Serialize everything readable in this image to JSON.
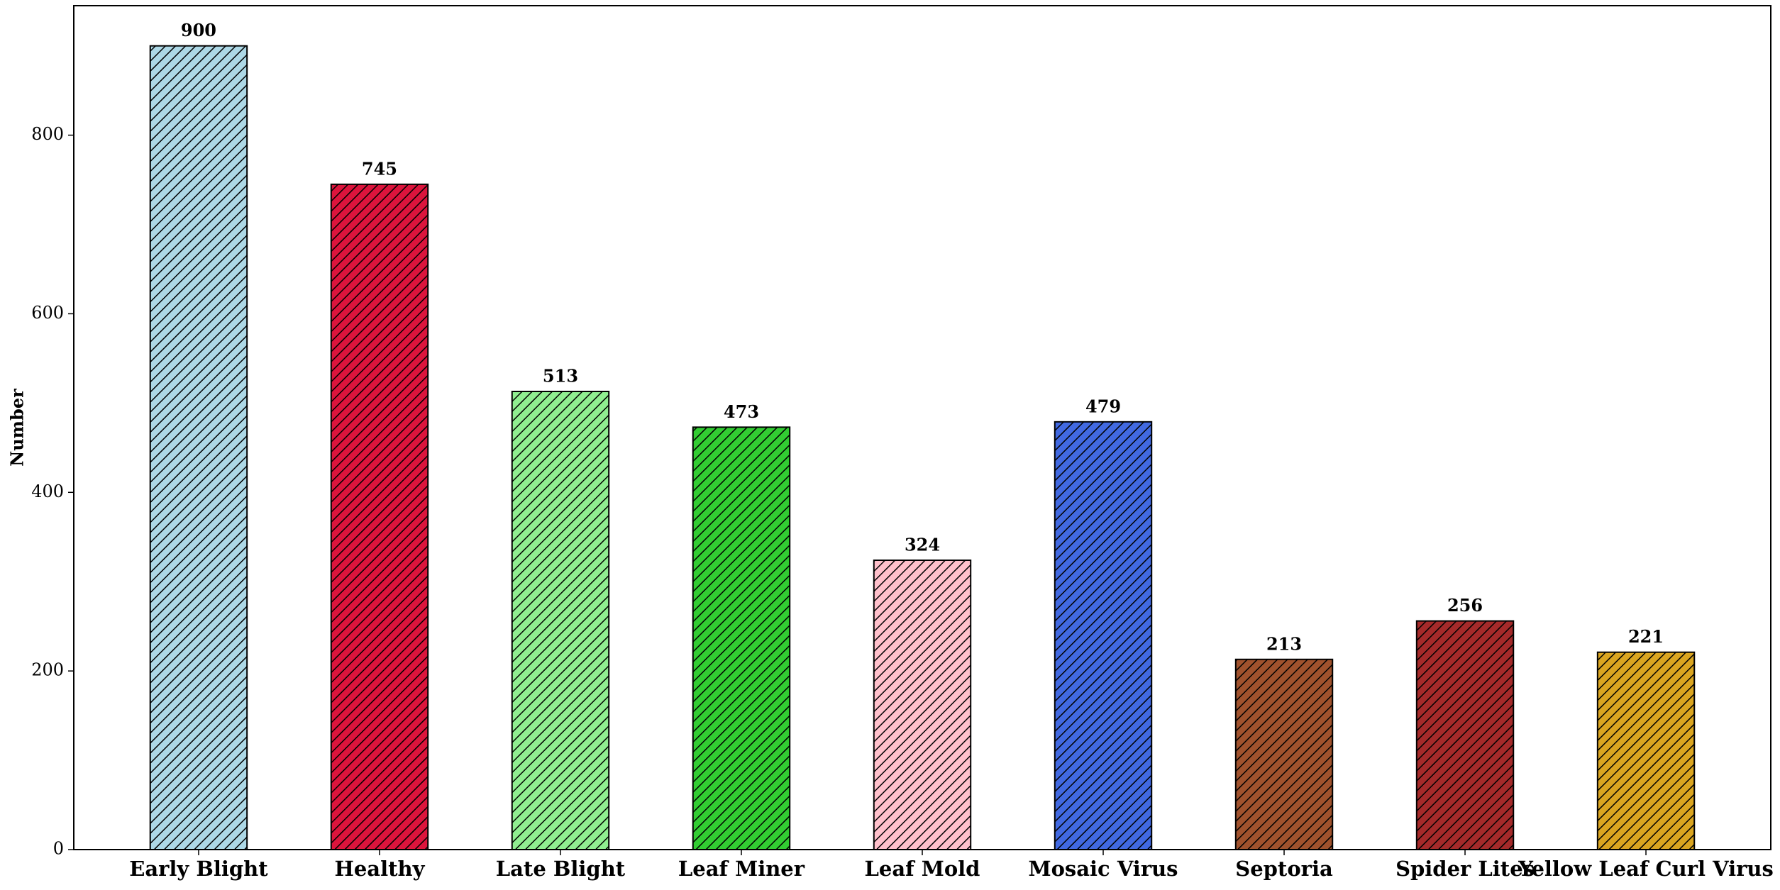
{
  "chart_data": {
    "type": "bar",
    "y_label": "Number",
    "categories": [
      "Early Blight",
      "Healthy",
      "Late Blight",
      "Leaf Miner",
      "Leaf Mold",
      "Mosaic Virus",
      "Septoria",
      "Spider Lites",
      "Yellow Leaf Curl Virus"
    ],
    "values": [
      900,
      745,
      513,
      473,
      324,
      479,
      213,
      256,
      221
    ],
    "colors": [
      "#add8e6",
      "#dc143c",
      "#90ee90",
      "#32cd32",
      "#ffc0cb",
      "#4169e1",
      "#a0522d",
      "#a52a2a",
      "#daa520"
    ],
    "ylim": [
      0,
      945
    ],
    "yticks": [
      0,
      200,
      400,
      600,
      800
    ],
    "grid": false
  }
}
